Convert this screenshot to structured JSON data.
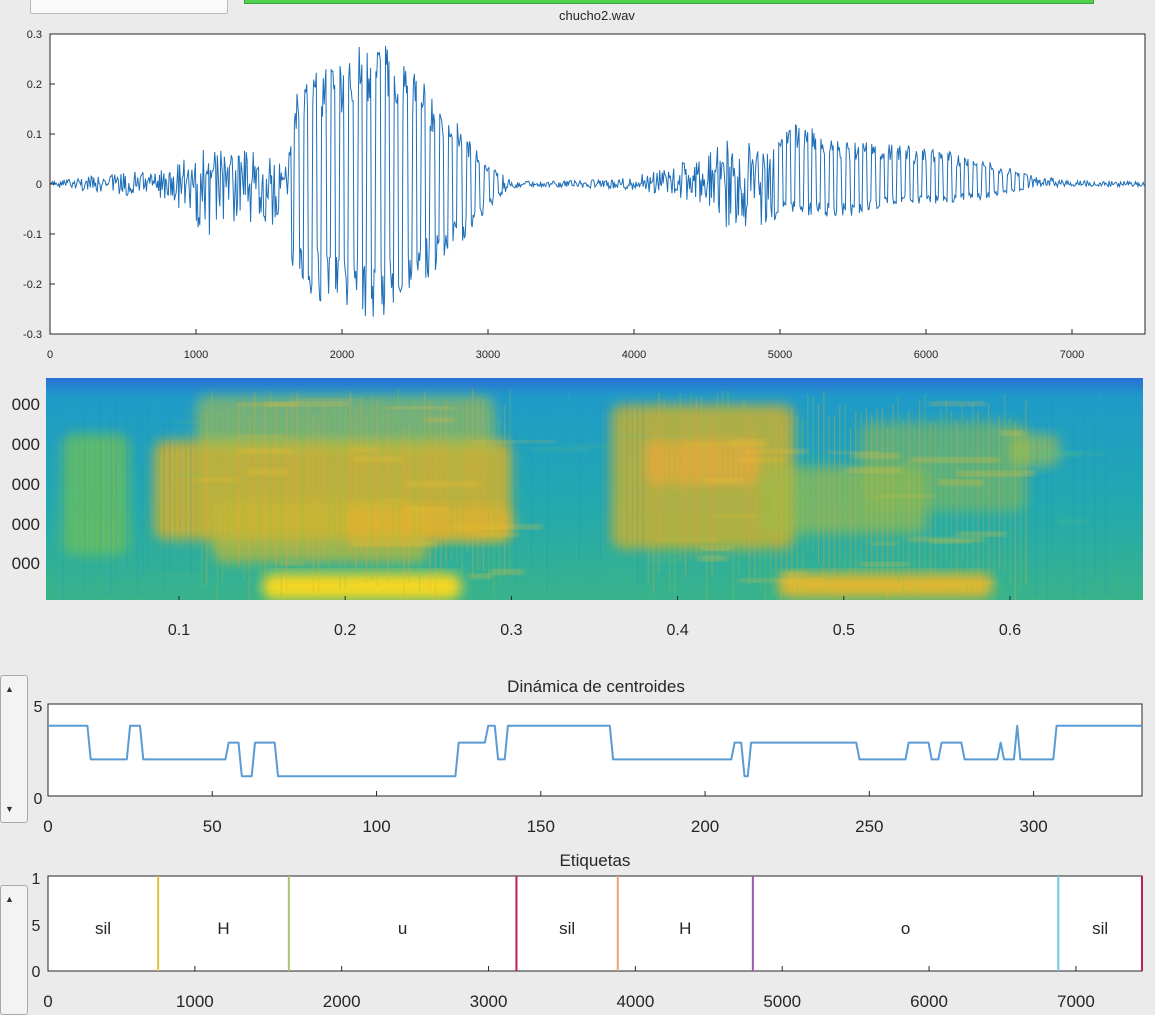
{
  "waveform": {
    "title": "chucho2.wav",
    "xlim": [
      0,
      7500
    ],
    "ylim": [
      -0.3,
      0.3
    ],
    "xticks": [
      "0",
      "1000",
      "2000",
      "3000",
      "4000",
      "5000",
      "6000",
      "7000"
    ],
    "yticks": [
      "0.3",
      "0.2",
      "0.1",
      "0",
      "-0.1",
      "-0.2",
      "-0.3"
    ],
    "line_color": "#1f6fb8"
  },
  "spectrogram": {
    "xticks": [
      "0.1",
      "0.2",
      "0.3",
      "0.4",
      "0.5",
      "0.6"
    ],
    "yticks_partial": [
      "000",
      "000",
      "000",
      "000",
      "000"
    ],
    "colormap": "parula"
  },
  "chart_data": [
    {
      "type": "line",
      "title": "chucho2.wav",
      "xlim": [
        0,
        7500
      ],
      "ylim": [
        -0.3,
        0.3
      ],
      "description_of_series": "audio waveform samples",
      "envelope": {
        "x": [
          0,
          400,
          800,
          1100,
          1300,
          1600,
          1700,
          1900,
          2100,
          2250,
          2400,
          2700,
          3000,
          3150,
          3300,
          3900,
          4200,
          4500,
          4700,
          4900,
          5100,
          5400,
          5800,
          6100,
          6400,
          6700,
          7000,
          7500
        ],
        "max": [
          0.005,
          0.02,
          0.03,
          0.08,
          0.07,
          0.05,
          0.2,
          0.24,
          0.28,
          0.29,
          0.26,
          0.16,
          0.04,
          0.01,
          0.005,
          0.01,
          0.03,
          0.06,
          0.1,
          0.06,
          0.13,
          0.09,
          0.08,
          0.07,
          0.05,
          0.02,
          0.008,
          0.005
        ],
        "min": [
          -0.005,
          -0.02,
          -0.03,
          -0.11,
          -0.09,
          -0.08,
          -0.22,
          -0.24,
          -0.26,
          -0.28,
          -0.24,
          -0.16,
          -0.05,
          -0.01,
          -0.005,
          -0.01,
          -0.02,
          -0.05,
          -0.11,
          -0.08,
          -0.06,
          -0.07,
          -0.04,
          -0.04,
          -0.03,
          -0.01,
          -0.005,
          -0.005
        ]
      }
    },
    {
      "type": "heatmap",
      "title": "",
      "xlim": [
        0.02,
        0.68
      ],
      "xticks": [
        0.1,
        0.2,
        0.3,
        0.4,
        0.5,
        0.6
      ],
      "colormap": "parula",
      "energetic_regions": [
        {
          "x": [
            0.11,
            0.3
          ],
          "level": "high"
        },
        {
          "x": [
            0.4,
            0.6
          ],
          "level": "high"
        }
      ]
    },
    {
      "type": "line",
      "title": "Dinámica de centroides",
      "xlim": [
        0,
        333
      ],
      "ylim": [
        0,
        5
      ],
      "xticks": [
        0,
        50,
        100,
        150,
        200,
        250,
        300
      ],
      "yticks_visible": [
        "5",
        "0"
      ],
      "line_color": "#5b9bd5",
      "points": [
        [
          0,
          4
        ],
        [
          12,
          4
        ],
        [
          13,
          2
        ],
        [
          24,
          2
        ],
        [
          25,
          4
        ],
        [
          28,
          4
        ],
        [
          29,
          2
        ],
        [
          54,
          2
        ],
        [
          55,
          3
        ],
        [
          58,
          3
        ],
        [
          59,
          1
        ],
        [
          62,
          1
        ],
        [
          63,
          3
        ],
        [
          69,
          3
        ],
        [
          70,
          1
        ],
        [
          124,
          1
        ],
        [
          125,
          3
        ],
        [
          133,
          3
        ],
        [
          134,
          4
        ],
        [
          136,
          4
        ],
        [
          137,
          2
        ],
        [
          139,
          2
        ],
        [
          140,
          4
        ],
        [
          171,
          4
        ],
        [
          172,
          2
        ],
        [
          208,
          2
        ],
        [
          209,
          3
        ],
        [
          211,
          3
        ],
        [
          212,
          1
        ],
        [
          213,
          1
        ],
        [
          214,
          3
        ],
        [
          246,
          3
        ],
        [
          247,
          2
        ],
        [
          261,
          2
        ],
        [
          262,
          3
        ],
        [
          268,
          3
        ],
        [
          269,
          2
        ],
        [
          271,
          2
        ],
        [
          272,
          3
        ],
        [
          278,
          3
        ],
        [
          279,
          2
        ],
        [
          289,
          2
        ],
        [
          290,
          3
        ],
        [
          291,
          2
        ],
        [
          294,
          2
        ],
        [
          295,
          4
        ],
        [
          296,
          2
        ],
        [
          306,
          2
        ],
        [
          307,
          4
        ],
        [
          333,
          4
        ]
      ]
    },
    {
      "type": "bar",
      "title": "Etiquetas",
      "xlim": [
        0,
        7450
      ],
      "ylim": [
        0,
        1
      ],
      "xticks": [
        0,
        1000,
        2000,
        3000,
        4000,
        5000,
        6000,
        7000
      ],
      "yticks_visible": [
        "1",
        "5",
        "0"
      ],
      "segments": [
        {
          "label": "sil",
          "start": 0,
          "end": 750,
          "boundary_color": "#e0c040"
        },
        {
          "label": "H",
          "start": 750,
          "end": 1640,
          "boundary_color": "#a8c46a"
        },
        {
          "label": "u",
          "start": 1640,
          "end": 3190,
          "boundary_color": "#c02050"
        },
        {
          "label": "sil",
          "start": 3190,
          "end": 3880,
          "boundary_color": "#f0a070"
        },
        {
          "label": "H",
          "start": 3880,
          "end": 4800,
          "boundary_color": "#9b59b6"
        },
        {
          "label": "o",
          "start": 4800,
          "end": 6880,
          "boundary_color": "#70c8e0"
        },
        {
          "label": "sil",
          "start": 6880,
          "end": 7450,
          "boundary_color": "#c02050"
        }
      ]
    }
  ],
  "centroids": {
    "title": "Dinámica de centroides",
    "xticks": [
      "0",
      "50",
      "100",
      "150",
      "200",
      "250",
      "300"
    ],
    "yticks": [
      "5",
      "0"
    ]
  },
  "labels": {
    "title": "Etiquetas",
    "xticks": [
      "0",
      "1000",
      "2000",
      "3000",
      "4000",
      "5000",
      "6000",
      "7000"
    ],
    "yticks": [
      "1",
      "5",
      "0"
    ]
  }
}
